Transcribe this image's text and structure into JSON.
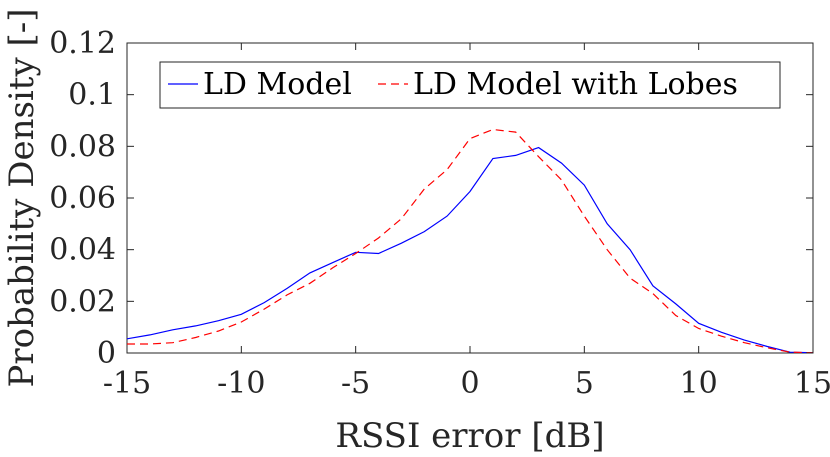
{
  "chart_data": {
    "type": "line",
    "title": "",
    "xlabel": "RSSI error [dB]",
    "ylabel": "Probability Density [-]",
    "xlim": [
      -15,
      15
    ],
    "ylim": [
      0,
      0.12
    ],
    "xticks": [
      -15,
      -10,
      -5,
      0,
      5,
      10,
      15
    ],
    "xtick_labels": [
      "-15",
      "-10",
      "-5",
      "0",
      "5",
      "10",
      "15"
    ],
    "yticks": [
      0,
      0.02,
      0.04,
      0.06,
      0.08,
      0.1,
      0.12
    ],
    "ytick_labels": [
      "0",
      "0.02",
      "0.04",
      "0.06",
      "0.08",
      "0.1",
      "0.12"
    ],
    "grid": false,
    "legend_position": "top-center",
    "series": [
      {
        "name": "LD Model",
        "color": "#0000ff",
        "style": "solid",
        "x": [
          -15,
          -14,
          -13,
          -12,
          -11,
          -10,
          -9,
          -8,
          -7,
          -6,
          -5,
          -4,
          -3,
          -2,
          -1,
          0,
          1,
          2,
          3,
          4,
          5,
          6,
          7,
          8,
          9,
          10,
          11,
          12,
          13,
          14,
          15
        ],
        "values": [
          0.0055,
          0.007,
          0.009,
          0.0105,
          0.0125,
          0.015,
          0.0195,
          0.025,
          0.031,
          0.035,
          0.039,
          0.0385,
          0.0425,
          0.047,
          0.053,
          0.0625,
          0.0753,
          0.0765,
          0.0795,
          0.0735,
          0.065,
          0.05,
          0.04,
          0.026,
          0.019,
          0.0115,
          0.008,
          0.005,
          0.0025,
          0.0003,
          0.0001
        ]
      },
      {
        "name": "LD Model with Lobes",
        "color": "#ff0000",
        "style": "dashed",
        "x": [
          -15,
          -14,
          -13,
          -12,
          -11,
          -10,
          -9,
          -8,
          -7,
          -6,
          -5,
          -4,
          -3,
          -2,
          -1,
          0,
          1,
          2,
          3,
          4,
          5,
          6,
          7,
          8,
          9,
          10,
          11,
          12,
          13,
          14,
          15
        ],
        "values": [
          0.0035,
          0.0035,
          0.004,
          0.006,
          0.0085,
          0.012,
          0.017,
          0.0225,
          0.027,
          0.033,
          0.0385,
          0.0445,
          0.052,
          0.0635,
          0.071,
          0.083,
          0.0865,
          0.0855,
          0.076,
          0.067,
          0.053,
          0.04,
          0.029,
          0.023,
          0.0145,
          0.0095,
          0.0065,
          0.004,
          0.002,
          0.0003,
          0.0001
        ]
      }
    ]
  }
}
